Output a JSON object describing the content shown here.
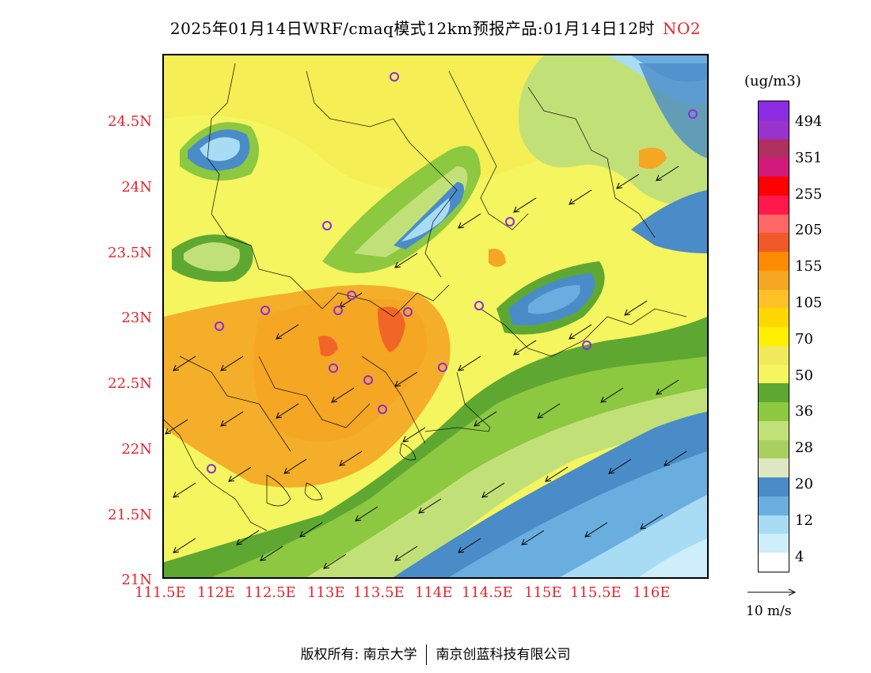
{
  "title": {
    "main": "2025年01月14日WRF/cmaq模式12km预报产品:01月14日12时",
    "pollutant": "NO2"
  },
  "y_axis_labels": [
    "24.5N",
    "24N",
    "23.5N",
    "23N",
    "22.5N",
    "22N",
    "21.5N",
    "21N"
  ],
  "x_axis_labels": [
    "111.5E",
    "112E",
    "112.5E",
    "113E",
    "113.5E",
    "114E",
    "114.5E",
    "115E",
    "115.5E",
    "116E"
  ],
  "legend": {
    "unit": "(ug/m3)",
    "labels": [
      "494",
      "351",
      "255",
      "205",
      "155",
      "105",
      "70",
      "50",
      "36",
      "28",
      "20",
      "12",
      "4"
    ],
    "colors": [
      "#8b2be2",
      "#9933cc",
      "#b03060",
      "#d11a7a",
      "#ff0000",
      "#ff1a4b",
      "#ff6666",
      "#f05a28",
      "#ff8c00",
      "#f5a623",
      "#ffc125",
      "#ffd700",
      "#ffef00",
      "#f2e85c",
      "#f4f55f",
      "#5ea832",
      "#8cc840",
      "#c2e078",
      "#a8d060",
      "#dde8c0",
      "#4a8cc8",
      "#6aaee0",
      "#a8dcf4",
      "#cdeefa",
      "#ffffff"
    ]
  },
  "wind_reference": {
    "label": "10 m/s"
  },
  "copyright": {
    "left": "版权所有: 南京大学",
    "right": "南京创蓝科技有限公司"
  },
  "colors": {
    "axis_label": "#e8232c",
    "station_marker": "#8b2be2"
  }
}
